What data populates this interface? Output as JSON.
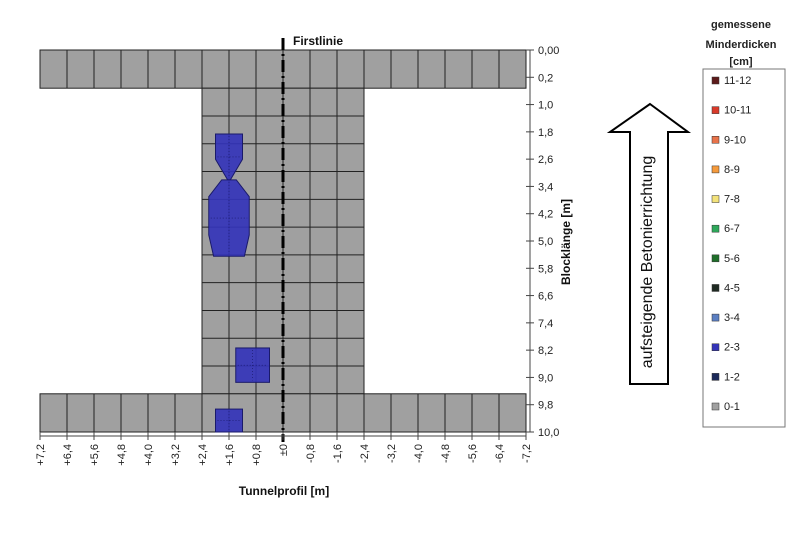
{
  "chart_data": {
    "type": "heatmap",
    "xlabel": "Tunnelprofil [m]",
    "ylabel": "Blocklänge [m]",
    "centerline_label": "Firstlinie",
    "x_ticks": [
      "+7,2",
      "+6,4",
      "+5,6",
      "+4,8",
      "+4,0",
      "+3,2",
      "+2,4",
      "+1,6",
      "+0,8",
      "±0",
      "-0,8",
      "-1,6",
      "-2,4",
      "-3,2",
      "-4,0",
      "-4,8",
      "-5,6",
      "-6,4",
      "-7,2"
    ],
    "y_ticks": [
      "0,00",
      "0,2",
      "1,0",
      "1,8",
      "2,6",
      "3,4",
      "4,2",
      "5,0",
      "5,8",
      "6,6",
      "7,4",
      "8,2",
      "9,0",
      "9,8",
      "10,0"
    ],
    "xlim": [
      7.2,
      -7.2
    ],
    "ylim": [
      0,
      10.0
    ],
    "measured_region": [
      {
        "x_from": 7.2,
        "x_to": -7.2,
        "y_from": 0.0,
        "y_to": 1.0
      },
      {
        "x_from": 2.4,
        "x_to": -2.4,
        "y_from": 1.0,
        "y_to": 9.0
      },
      {
        "x_from": 7.2,
        "x_to": -7.2,
        "y_from": 9.0,
        "y_to": 10.0
      }
    ],
    "base_class": "0-1",
    "anomalies": [
      {
        "class": "2-3",
        "shape": "bowtie",
        "x_from": 2.0,
        "x_to": 1.2,
        "y_from": 2.2,
        "y_to": 3.4
      },
      {
        "class": "2-3",
        "shape": "octagon",
        "x_from": 2.2,
        "x_to": 1.0,
        "y_from": 3.4,
        "y_to": 5.4
      },
      {
        "class": "2-3",
        "shape": "rect",
        "x_from": 1.4,
        "x_to": 0.4,
        "y_from": 7.8,
        "y_to": 8.7
      },
      {
        "class": "2-3",
        "shape": "rect",
        "x_from": 2.0,
        "x_to": 1.2,
        "y_from": 9.4,
        "y_to": 10.0
      }
    ],
    "legend": {
      "title": [
        "gemessene",
        "Minderdicken",
        "[cm]"
      ],
      "items": [
        {
          "label": "11-12",
          "color": "#5c1a1a"
        },
        {
          "label": "10-11",
          "color": "#d93a2a"
        },
        {
          "label": "9-10",
          "color": "#e8734a"
        },
        {
          "label": "8-9",
          "color": "#f59a3c"
        },
        {
          "label": "7-8",
          "color": "#f3e27a"
        },
        {
          "label": "6-7",
          "color": "#2ea85a"
        },
        {
          "label": "5-6",
          "color": "#1f6e2a"
        },
        {
          "label": "4-5",
          "color": "#1f2a22"
        },
        {
          "label": "3-4",
          "color": "#5b7fc2"
        },
        {
          "label": "2-3",
          "color": "#3434b8"
        },
        {
          "label": "1-2",
          "color": "#1c2a5a"
        },
        {
          "label": "0-1",
          "color": "#a0a0a0"
        }
      ]
    }
  },
  "annotation": {
    "arrow_label": "aufsteigende Betonierrichtung"
  }
}
